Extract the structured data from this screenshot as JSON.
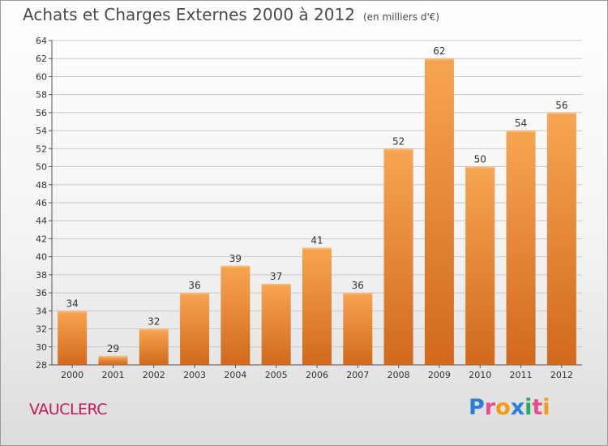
{
  "chart_data": {
    "type": "bar",
    "title": "Achats et Charges Externes 2000 à 2012",
    "subtitle": "(en milliers d'€)",
    "categories": [
      "2000",
      "2001",
      "2002",
      "2003",
      "2004",
      "2005",
      "2006",
      "2007",
      "2008",
      "2009",
      "2010",
      "2011",
      "2012"
    ],
    "values": [
      34,
      29,
      32,
      36,
      39,
      37,
      41,
      36,
      52,
      62,
      50,
      54,
      56
    ],
    "ylim": [
      28,
      64
    ],
    "yticks": [
      28,
      30,
      32,
      34,
      36,
      38,
      40,
      42,
      44,
      46,
      48,
      50,
      52,
      54,
      56,
      58,
      60,
      62,
      64
    ],
    "grid": true,
    "colors": {
      "bar_light": "#f7a552",
      "bar_dark": "#d1691c",
      "grid": "#c8c8c8",
      "label": "#333333"
    }
  },
  "footer": {
    "place": "VAUCLERC",
    "logo": "Proxiti"
  }
}
